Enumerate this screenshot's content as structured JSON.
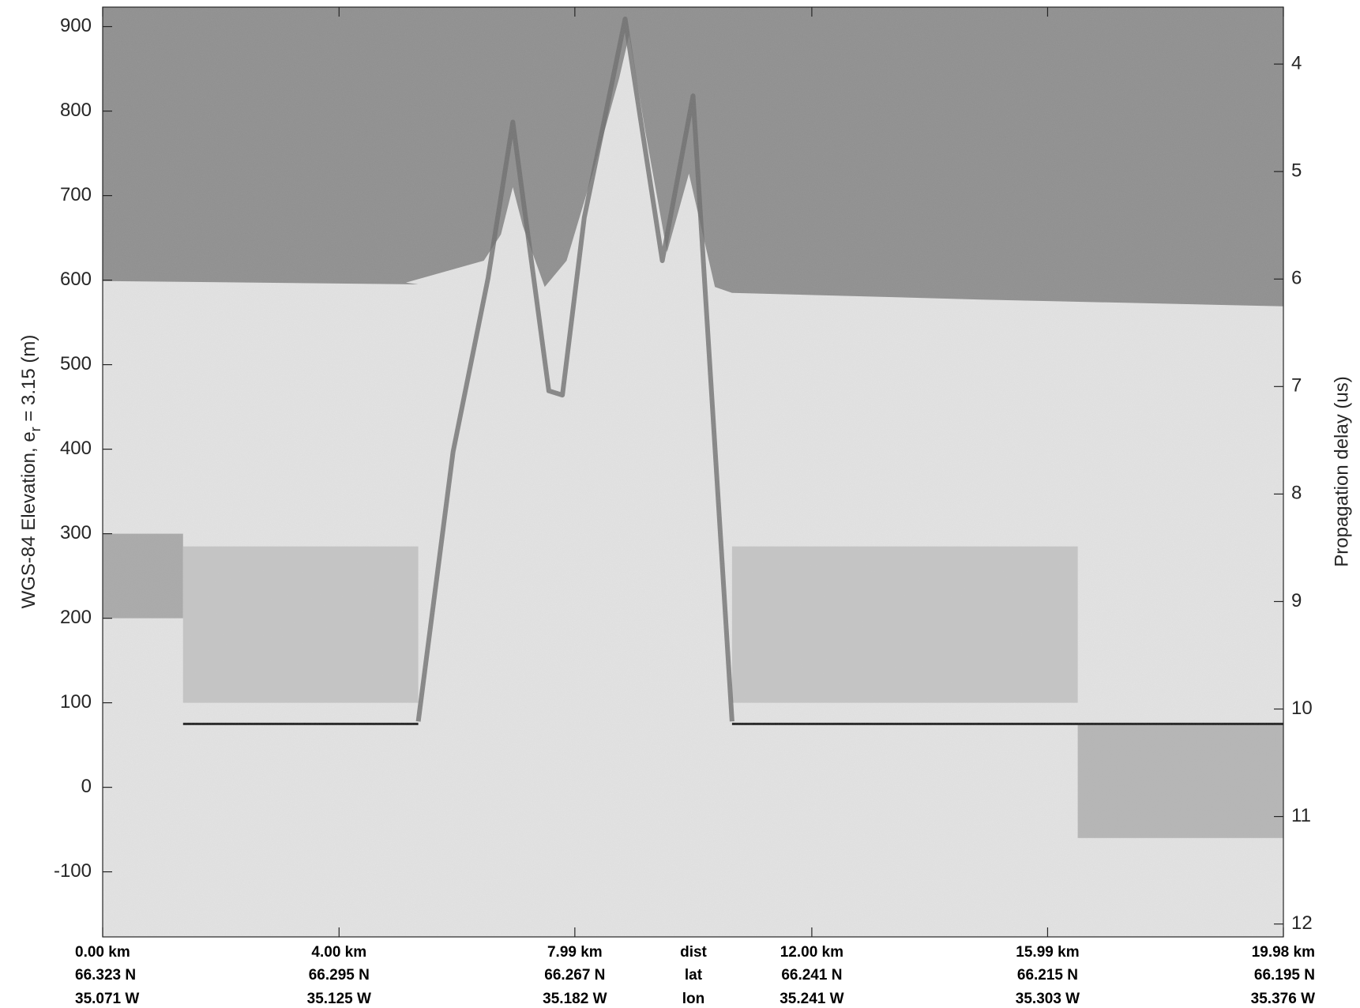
{
  "chart_data": {
    "type": "echogram",
    "ylabel": "WGS-84 Elevation, e",
    "ylabel_sub": "r",
    "ylabel_tail": " = 3.15 (m)",
    "y2label": "Propagation delay (us)",
    "xlim": [
      0,
      19.98
    ],
    "ylim": [
      -177,
      923
    ],
    "y2lim": [
      12.12,
      3.47
    ],
    "yticks": [
      -100,
      0,
      100,
      200,
      300,
      400,
      500,
      600,
      700,
      800,
      900
    ],
    "y2ticks": [
      4,
      5,
      6,
      7,
      8,
      9,
      10,
      11,
      12
    ],
    "xticks": [
      {
        "value": 0,
        "label": "0.00 km"
      },
      {
        "value": 4.0,
        "label": "4.00 km"
      },
      {
        "value": 7.99,
        "label": "7.99 km"
      },
      {
        "value": 12.0,
        "label": "12.00 km"
      },
      {
        "value": 15.99,
        "label": "15.99 km"
      },
      {
        "value": 19.98,
        "label": "19.98 km"
      }
    ],
    "lat_labels": [
      "66.323 N",
      "66.295 N",
      "66.267 N",
      "66.241 N",
      "66.215 N",
      "66.195 N"
    ],
    "lon_labels": [
      "35.071 W",
      "35.125 W",
      "35.182 W",
      "35.241 W",
      "35.303 W",
      "35.376 W"
    ],
    "row_labels": [
      "dist",
      "lat",
      "lon"
    ],
    "air_color": "#8e8e8e",
    "ice_color": "#e4e4e4",
    "surface": {
      "x": [
        0,
        5.34,
        5.13,
        6.45,
        6.74,
        6.94,
        7.11,
        7.48,
        7.85,
        8.29,
        8.74,
        8.91,
        9.18,
        9.55,
        9.92,
        10.36,
        10.65,
        14.86,
        19.98
      ],
      "values": [
        599,
        595,
        597,
        623,
        654,
        710,
        664,
        592,
        623,
        726,
        839,
        890,
        777,
        633,
        726,
        592,
        585,
        577,
        569
      ]
    },
    "ridge": {
      "color": "#6c6c6c",
      "x": [
        5.34,
        5.93,
        6.52,
        6.94,
        7.55,
        7.78,
        8.15,
        8.84,
        9.47,
        9.99,
        10.65
      ],
      "values": [
        78,
        397,
        602,
        787,
        469,
        464,
        674,
        909,
        623,
        818,
        78
      ]
    },
    "bed": {
      "color": "#1e1e1e",
      "segments": [
        {
          "x": [
            1.36,
            5.34
          ],
          "values": [
            75,
            75
          ]
        },
        {
          "x": [
            10.65,
            19.98
          ],
          "values": [
            75,
            75
          ]
        }
      ]
    },
    "bands": [
      {
        "x0": 0,
        "x1": 1.36,
        "y0": 200,
        "y1": 300,
        "color": "#9a9a9a"
      },
      {
        "x0": 1.36,
        "x1": 5.34,
        "y0": 100,
        "y1": 285,
        "color": "#bdbdbd"
      },
      {
        "x0": 10.65,
        "x1": 16.5,
        "y0": 100,
        "y1": 285,
        "color": "#bdbdbd"
      },
      {
        "x0": 16.5,
        "x1": 19.98,
        "y0": -60,
        "y1": 75,
        "color": "#a9a9a9"
      }
    ]
  }
}
